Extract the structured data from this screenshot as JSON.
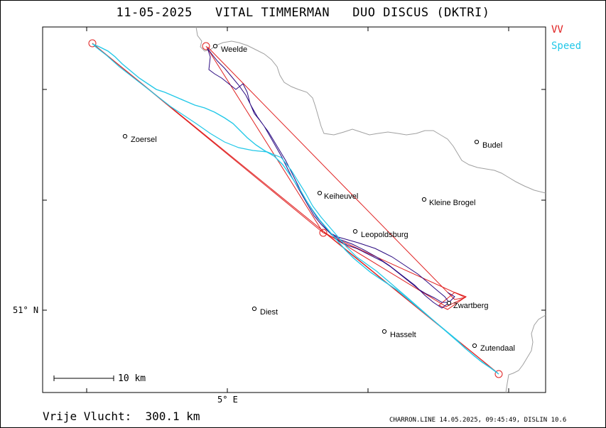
{
  "title": "11-05-2025   VITAL TIMMERMAN   DUO DISCUS (DKTRI)",
  "legend": {
    "vv_label": "VV",
    "vv_color": "#e02020",
    "speed_label": "Speed",
    "speed_color": "#22c8e8"
  },
  "colors": {
    "border": "#a0a0a0",
    "track": "#2a0a80",
    "task": "#e02020",
    "speed": "#22c8e8"
  },
  "axes": {
    "lon_label": "5° E",
    "lat_label": "51° N"
  },
  "scale": {
    "label": "10 km"
  },
  "places": [
    {
      "name": "Weelde"
    },
    {
      "name": "Zoersel"
    },
    {
      "name": "Budel"
    },
    {
      "name": "Keiheuvel"
    },
    {
      "name": "Kleine Brogel"
    },
    {
      "name": "Leopoldsburg"
    },
    {
      "name": "Diest"
    },
    {
      "name": "Zwartberg"
    },
    {
      "name": "Hasselt"
    },
    {
      "name": "Zutendaal"
    }
  ],
  "footer": {
    "distance": "Vrije Vlucht:  300.1 km",
    "credits": "CHARRON.LINE 14.05.2025, 09:45:49, DISLIN 10.6"
  }
}
